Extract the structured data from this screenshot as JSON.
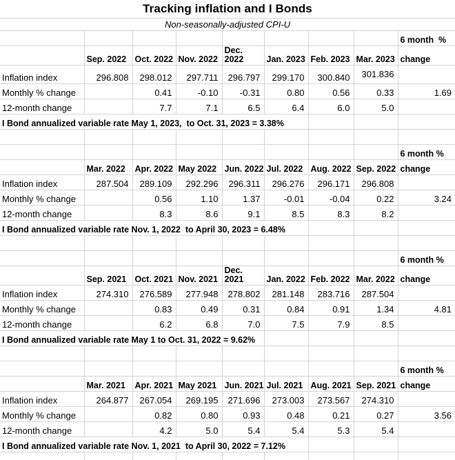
{
  "title": "Tracking inflation and I Bonds",
  "subtitle": "Non-seasonally-adjusted CPI-U",
  "tables": [
    {
      "months": [
        "Sep. 2022",
        "Oct. 2022",
        "Nov. 2022",
        "Dec. 2022",
        "Jan. 2023",
        "Feb. 2023",
        "Mar. 2023"
      ],
      "six_month_header": [
        "6 month  %",
        "change"
      ],
      "rows": [
        {
          "label": "Inflation index",
          "values": [
            "296.808",
            "298.012",
            "297.711",
            "296.797",
            "299.170",
            "300.840",
            "301.836"
          ],
          "six_month": ""
        },
        {
          "label": "Monthly % change",
          "values": [
            "",
            "0.41",
            "-0.10",
            "-0.31",
            "0.80",
            "0.56",
            "0.33"
          ],
          "six_month": "1.69"
        },
        {
          "label": "12-month change",
          "values": [
            "",
            "7.7",
            "7.1",
            "6.5",
            "6.4",
            "6.0",
            "5.0"
          ],
          "six_month": ""
        }
      ],
      "footer": "I Bond annualized variable rate May 1, 2023,  to Oct. 31, 2023 = 3.38%"
    },
    {
      "months": [
        "Mar. 2022",
        "Apr. 2022",
        "May 2022",
        "Jun. 2022",
        "Jul. 2022",
        "Aug. 2022",
        "Sep. 2022"
      ],
      "six_month_header": [
        "6 month %",
        "change"
      ],
      "rows": [
        {
          "label": "Inflation index",
          "values": [
            "287.504",
            "289.109",
            "292.296",
            "296.311",
            "296.276",
            "296.171",
            "296.808"
          ],
          "six_month": ""
        },
        {
          "label": "Monthly % change",
          "values": [
            "",
            "0.56",
            "1.10",
            "1.37",
            "-0.01",
            "-0.04",
            "0.22"
          ],
          "six_month": "3.24"
        },
        {
          "label": "12-month change",
          "values": [
            "",
            "8.3",
            "8.6",
            "9.1",
            "8.5",
            "8.3",
            "8.2"
          ],
          "six_month": ""
        }
      ],
      "footer": "I Bond annualized variable rate Nov. 1, 2022  to April 30, 2023 = 6.48%"
    },
    {
      "months": [
        "Sep. 2021",
        "Oct. 2021",
        "Nov. 2021",
        "Dec. 2021",
        "Jan. 2022",
        "Feb. 2022",
        "Mar. 2022"
      ],
      "six_month_header": [
        "6 month %",
        "change"
      ],
      "rows": [
        {
          "label": "Inflation index",
          "values": [
            "274.310",
            "276.589",
            "277.948",
            "278.802",
            "281.148",
            "283.716",
            "287.504"
          ],
          "six_month": ""
        },
        {
          "label": "Monthly % change",
          "values": [
            "",
            "0.83",
            "0.49",
            "0.31",
            "0.84",
            "0.91",
            "1.34"
          ],
          "six_month": "4.81"
        },
        {
          "label": "12-month change",
          "values": [
            "",
            "6.2",
            "6.8",
            "7.0",
            "7.5",
            "7.9",
            "8.5"
          ],
          "six_month": ""
        }
      ],
      "footer": "I Bond annualized variable rate May 1 to Oct. 31, 2022 = 9.62%"
    },
    {
      "months": [
        "Mar. 2021",
        "Apr. 2021",
        "May 2021",
        "Jun. 2021",
        "Jul. 2021",
        "Aug. 2021",
        "Sep. 2021"
      ],
      "six_month_header": [
        "6 month %",
        "change"
      ],
      "rows": [
        {
          "label": "Inflation index",
          "values": [
            "264.877",
            "267.054",
            "269.195",
            "271.696",
            "273.003",
            "273.567",
            "274.310"
          ],
          "six_month": ""
        },
        {
          "label": "Monthly % change",
          "values": [
            "",
            "0.82",
            "0.80",
            "0.93",
            "0.48",
            "0.21",
            "0.27"
          ],
          "six_month": "3.56"
        },
        {
          "label": "12-month change",
          "values": [
            "",
            "4.2",
            "5.0",
            "5.4",
            "5.4",
            "5.3",
            "5.4"
          ],
          "six_month": ""
        }
      ],
      "footer": "I Bond annualized variable rate Nov. 1, 2021  to April 30, 2022 = 7.12%"
    }
  ]
}
